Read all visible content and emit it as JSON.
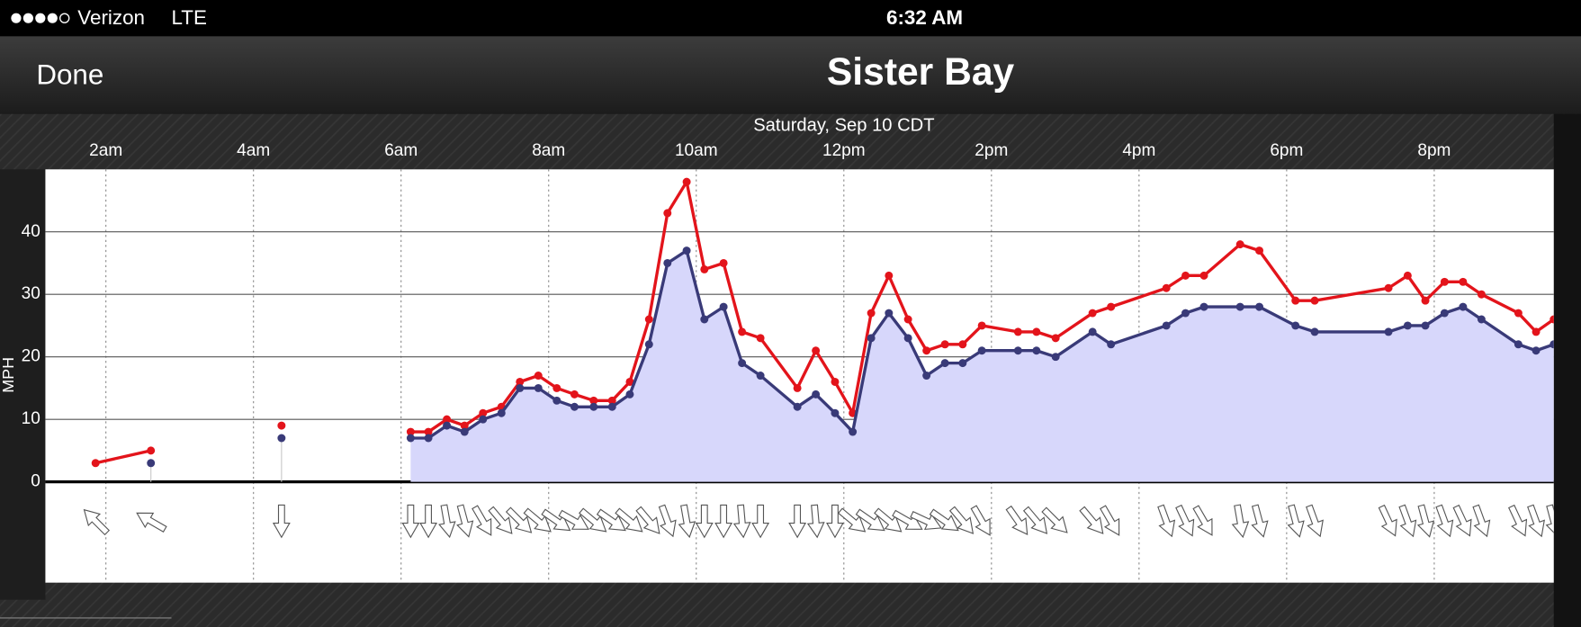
{
  "status_bar": {
    "carrier": "Verizon",
    "network": "LTE",
    "time": "6:32 AM"
  },
  "nav": {
    "done": "Done",
    "title": "Sister Bay"
  },
  "chart_data": {
    "type": "line",
    "subtitle": "Saturday, Sep 10 CDT",
    "y_label": "MPH",
    "grid": true,
    "xlim": [
      1.18,
      21.62
    ],
    "xticks": [
      {
        "value": 2,
        "label": "2am"
      },
      {
        "value": 4,
        "label": "4am"
      },
      {
        "value": 6,
        "label": "6am"
      },
      {
        "value": 8,
        "label": "8am"
      },
      {
        "value": 10,
        "label": "10am"
      },
      {
        "value": 12,
        "label": "12pm"
      },
      {
        "value": 14,
        "label": "2pm"
      },
      {
        "value": 16,
        "label": "4pm"
      },
      {
        "value": 18,
        "label": "6pm"
      },
      {
        "value": 20,
        "label": "8pm"
      }
    ],
    "ylim": [
      0,
      50
    ],
    "yticks": [
      0,
      10,
      20,
      30,
      40
    ],
    "x": [
      1.86,
      2.61,
      null,
      4.38,
      null,
      6.13,
      6.37,
      6.62,
      6.86,
      7.11,
      7.36,
      7.61,
      7.86,
      8.11,
      8.35,
      8.61,
      8.86,
      9.1,
      9.36,
      9.61,
      9.87,
      10.11,
      10.37,
      10.62,
      10.87,
      11.37,
      11.62,
      11.88,
      12.12,
      12.37,
      12.61,
      12.87,
      13.12,
      13.37,
      13.61,
      13.87,
      14.36,
      14.61,
      14.87,
      15.37,
      15.62,
      16.37,
      16.63,
      16.88,
      17.37,
      17.63,
      18.12,
      18.38,
      19.38,
      19.64,
      19.88,
      20.14,
      20.39,
      20.64,
      21.14,
      21.38,
      21.62
    ],
    "series": [
      {
        "color": "#e3141b",
        "values": [
          3,
          5,
          null,
          9,
          null,
          8,
          8,
          10,
          9,
          11,
          12,
          16,
          17,
          15,
          14,
          13,
          13,
          16,
          26,
          43,
          48,
          34,
          35,
          24,
          23,
          15,
          21,
          16,
          11,
          27,
          33,
          26,
          21,
          22,
          22,
          25,
          24,
          24,
          23,
          27,
          28,
          31,
          33,
          33,
          38,
          37,
          29,
          29,
          31,
          33,
          29,
          32,
          32,
          30,
          27,
          24,
          26
        ]
      },
      {
        "color": "#393a78",
        "fill": "#d7d7fb",
        "values": [
          null,
          3,
          null,
          7,
          null,
          7,
          7,
          9,
          8,
          10,
          11,
          15,
          15,
          13,
          12,
          12,
          12,
          14,
          22,
          35,
          37,
          26,
          28,
          19,
          17,
          12,
          14,
          11,
          8,
          23,
          27,
          23,
          17,
          19,
          19,
          21,
          21,
          21,
          20,
          24,
          22,
          25,
          27,
          28,
          28,
          28,
          25,
          24,
          24,
          25,
          25,
          27,
          28,
          26,
          22,
          21,
          22
        ]
      }
    ],
    "directions": [
      135,
      120,
      null,
      0,
      null,
      0,
      0,
      350,
      345,
      330,
      320,
      315,
      310,
      305,
      300,
      310,
      305,
      310,
      320,
      340,
      350,
      0,
      0,
      355,
      0,
      0,
      355,
      0,
      310,
      305,
      310,
      300,
      295,
      305,
      320,
      330,
      325,
      320,
      315,
      320,
      330,
      340,
      335,
      330,
      350,
      345,
      345,
      340,
      335,
      340,
      345,
      340,
      335,
      340,
      335,
      340,
      345
    ]
  }
}
